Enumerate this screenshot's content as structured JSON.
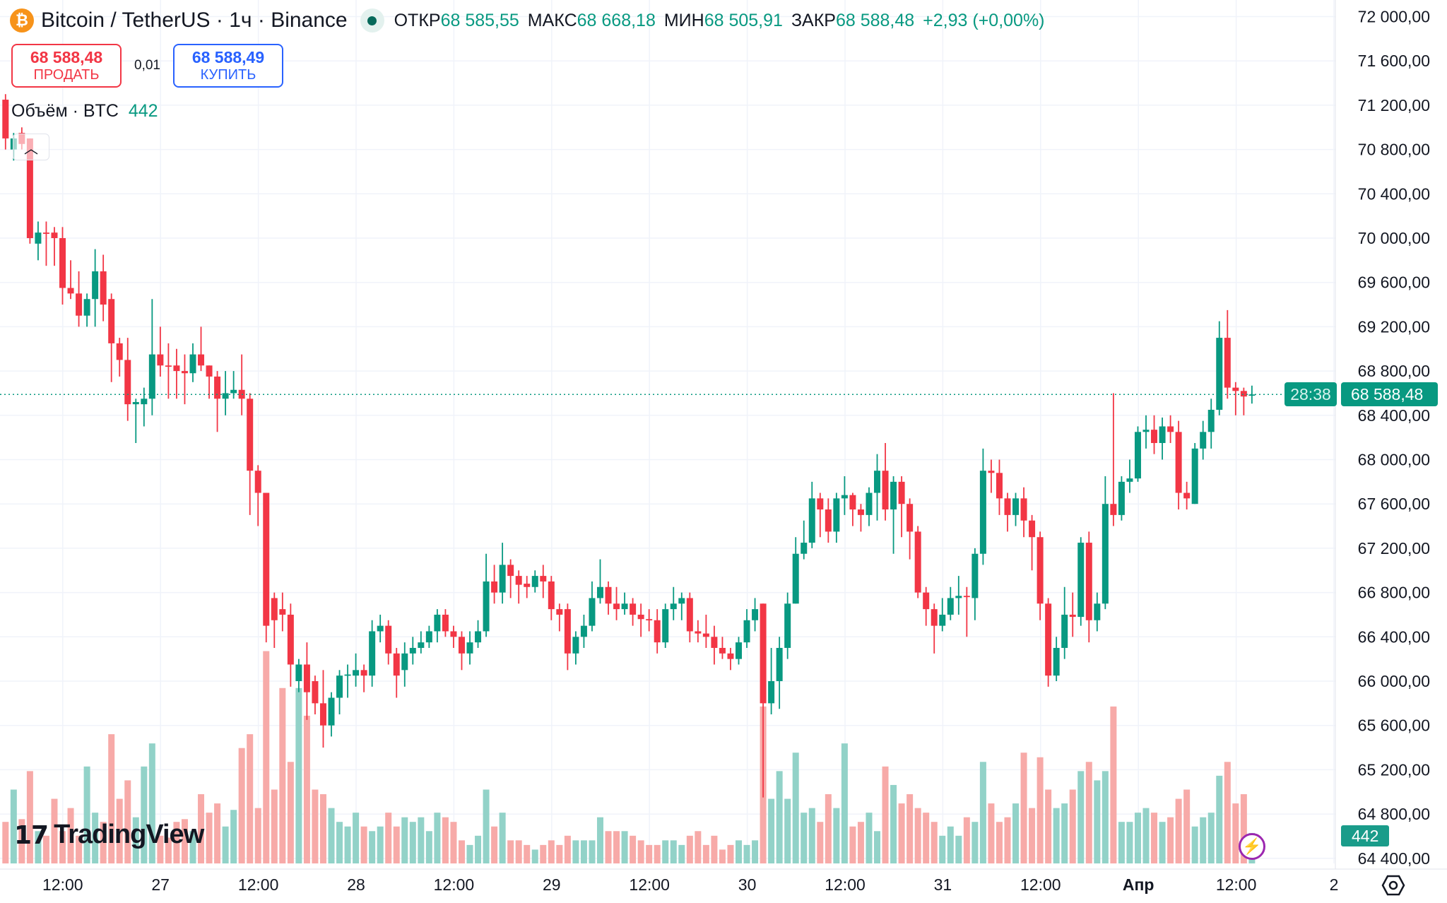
{
  "header": {
    "symbol_icon": "bitcoin-icon",
    "title": "Bitcoin / TetherUS · 1ч · Binance",
    "status_icon": "market-open-dot",
    "open_label": "ОТКР",
    "open_value": "68 585,55",
    "high_label": "МАКС",
    "high_value": "68 668,18",
    "low_label": "МИН",
    "low_value": "68 505,91",
    "close_label": "ЗАКР",
    "close_value": "68 588,48",
    "change": "+2,93 (+0,00%)"
  },
  "trade": {
    "sell_price": "68 588,48",
    "sell_label": "ПРОДАТЬ",
    "spread": "0,01",
    "buy_price": "68 588,49",
    "buy_label": "КУПИТЬ"
  },
  "volume_legend": {
    "label": "Объём · BTC",
    "value": "442"
  },
  "collapse_icon": "chevron-up-icon",
  "price_tag": {
    "price": "68 588,48",
    "countdown": "28:38"
  },
  "volume_tag": "442",
  "logo": "TradingView",
  "colors": {
    "up": "#089981",
    "down": "#f23645",
    "up_volume": "#92d2c8",
    "down_volume": "#f7aaa8",
    "sell": "#f23645",
    "buy": "#2962ff"
  },
  "chart_data": {
    "type": "candlestick",
    "interval": "1ч",
    "ylim": [
      64400,
      72000
    ],
    "y_ticks": [
      72000,
      71600,
      71200,
      70800,
      70400,
      70000,
      69600,
      69200,
      68800,
      68400,
      68000,
      67600,
      67200,
      66800,
      66400,
      66000,
      65600,
      65200,
      64800,
      64400
    ],
    "y_tick_labels": [
      "72 000,00",
      "71 600,00",
      "71 200,00",
      "70 800,00",
      "70 400,00",
      "70 000,00",
      "69 600,00",
      "69 200,00",
      "68 800,00",
      "68 400,00",
      "68 000,00",
      "67 600,00",
      "67 200,00",
      "66 800,00",
      "66 400,00",
      "66 000,00",
      "65 600,00",
      "65 200,00",
      "64 800,00",
      "64 400,00"
    ],
    "x_tick_labels": [
      "12:00",
      "27",
      "12:00",
      "28",
      "12:00",
      "29",
      "12:00",
      "30",
      "12:00",
      "31",
      "12:00",
      "Апр",
      "12:00",
      "2"
    ],
    "grid": true,
    "last_price": 68588.48,
    "ohlc": [
      [
        71250,
        71300,
        70800,
        70900
      ],
      [
        70800,
        70950,
        70700,
        70900
      ],
      [
        70950,
        71000,
        70800,
        70850
      ],
      [
        70900,
        70900,
        69950,
        70000
      ],
      [
        69950,
        70150,
        69800,
        70050
      ],
      [
        70050,
        70150,
        69750,
        70040
      ],
      [
        70050,
        70100,
        69750,
        70000
      ],
      [
        70000,
        70100,
        69400,
        69550
      ],
      [
        69550,
        69800,
        69450,
        69500
      ],
      [
        69500,
        69700,
        69200,
        69300
      ],
      [
        69300,
        69500,
        69200,
        69450
      ],
      [
        69450,
        69900,
        69200,
        69700
      ],
      [
        69700,
        69850,
        69250,
        69400
      ],
      [
        69450,
        69500,
        68700,
        69050
      ],
      [
        69050,
        69100,
        68750,
        68900
      ],
      [
        68900,
        69100,
        68350,
        68500
      ],
      [
        68500,
        68550,
        68150,
        68520
      ],
      [
        68500,
        68650,
        68300,
        68550
      ],
      [
        68550,
        69450,
        68400,
        68950
      ],
      [
        68950,
        69200,
        68750,
        68850
      ],
      [
        68850,
        69050,
        68550,
        68840
      ],
      [
        68850,
        69000,
        68550,
        68800
      ],
      [
        68800,
        68950,
        68500,
        68780
      ],
      [
        68780,
        69050,
        68700,
        68950
      ],
      [
        68950,
        69200,
        68800,
        68850
      ],
      [
        68850,
        68850,
        68550,
        68750
      ],
      [
        68750,
        68800,
        68250,
        68550
      ],
      [
        68550,
        68800,
        68400,
        68600
      ],
      [
        68600,
        68800,
        68550,
        68630
      ],
      [
        68630,
        68950,
        68400,
        68550
      ],
      [
        68550,
        68600,
        67500,
        67900
      ],
      [
        67900,
        67950,
        67400,
        67700
      ],
      [
        67700,
        67700,
        66350,
        66500
      ],
      [
        66750,
        66800,
        66300,
        66550
      ],
      [
        66650,
        66800,
        66450,
        66600
      ],
      [
        66600,
        66700,
        65950,
        66150
      ],
      [
        66000,
        66200,
        65900,
        66150
      ],
      [
        66150,
        66350,
        65650,
        65900
      ],
      [
        66000,
        66050,
        65700,
        65800
      ],
      [
        65800,
        66100,
        65400,
        65600
      ],
      [
        65600,
        65900,
        65500,
        65850
      ],
      [
        65850,
        66100,
        65700,
        66050
      ],
      [
        66050,
        66150,
        65850,
        66060
      ],
      [
        66050,
        66250,
        65950,
        66100
      ],
      [
        66100,
        66150,
        65900,
        66050
      ],
      [
        66050,
        66550,
        65950,
        66450
      ],
      [
        66450,
        66600,
        66350,
        66500
      ],
      [
        66500,
        66550,
        66150,
        66250
      ],
      [
        66250,
        66300,
        65850,
        66050
      ],
      [
        66100,
        66350,
        65950,
        66250
      ],
      [
        66250,
        66400,
        66150,
        66300
      ],
      [
        66300,
        66450,
        66250,
        66350
      ],
      [
        66350,
        66500,
        66300,
        66450
      ],
      [
        66450,
        66650,
        66350,
        66600
      ],
      [
        66600,
        66650,
        66400,
        66450
      ],
      [
        66450,
        66500,
        66300,
        66400
      ],
      [
        66400,
        66450,
        66100,
        66250
      ],
      [
        66250,
        66450,
        66150,
        66350
      ],
      [
        66350,
        66550,
        66300,
        66450
      ],
      [
        66450,
        67150,
        66400,
        66900
      ],
      [
        66900,
        67050,
        66700,
        66800
      ],
      [
        66800,
        67250,
        66700,
        67050
      ],
      [
        67050,
        67100,
        66750,
        66950
      ],
      [
        66950,
        67000,
        66700,
        66870
      ],
      [
        66880,
        66950,
        66750,
        66850
      ],
      [
        66850,
        67000,
        66800,
        66950
      ],
      [
        66950,
        67050,
        66750,
        66900
      ],
      [
        66900,
        66950,
        66550,
        66650
      ],
      [
        66650,
        66700,
        66450,
        66600
      ],
      [
        66650,
        66700,
        66100,
        66250
      ],
      [
        66250,
        66450,
        66150,
        66400
      ],
      [
        66400,
        66600,
        66300,
        66500
      ],
      [
        66500,
        66900,
        66450,
        66750
      ],
      [
        66750,
        67100,
        66700,
        66850
      ],
      [
        66850,
        66900,
        66600,
        66700
      ],
      [
        66700,
        66850,
        66550,
        66650
      ],
      [
        66650,
        66800,
        66600,
        66700
      ],
      [
        66700,
        66750,
        66500,
        66600
      ],
      [
        66600,
        66700,
        66400,
        66560
      ],
      [
        66560,
        66650,
        66450,
        66550
      ],
      [
        66550,
        66650,
        66250,
        66350
      ],
      [
        66350,
        66700,
        66300,
        66650
      ],
      [
        66650,
        66850,
        66550,
        66700
      ],
      [
        66700,
        66800,
        66550,
        66750
      ],
      [
        66750,
        66800,
        66350,
        66450
      ],
      [
        66450,
        66550,
        66350,
        66430
      ],
      [
        66430,
        66600,
        66300,
        66400
      ],
      [
        66400,
        66500,
        66150,
        66300
      ],
      [
        66300,
        66400,
        66200,
        66250
      ],
      [
        66250,
        66300,
        66100,
        66200
      ],
      [
        66200,
        66400,
        66150,
        66350
      ],
      [
        66350,
        66650,
        66300,
        66550
      ],
      [
        66550,
        66750,
        66450,
        66650
      ],
      [
        66700,
        66700,
        64950,
        65800
      ],
      [
        65800,
        66300,
        65700,
        66000
      ],
      [
        66000,
        66400,
        65750,
        66300
      ],
      [
        66300,
        66800,
        66200,
        66700
      ],
      [
        66700,
        67300,
        66700,
        67150
      ],
      [
        67150,
        67450,
        67100,
        67250
      ],
      [
        67250,
        67800,
        67200,
        67650
      ],
      [
        67650,
        67700,
        67300,
        67550
      ],
      [
        67550,
        67650,
        67250,
        67350
      ],
      [
        67350,
        67700,
        67250,
        67650
      ],
      [
        67650,
        67850,
        67500,
        67680
      ],
      [
        67680,
        67700,
        67400,
        67550
      ],
      [
        67550,
        67600,
        67350,
        67500
      ],
      [
        67500,
        67750,
        67400,
        67700
      ],
      [
        67700,
        68050,
        67450,
        67900
      ],
      [
        67900,
        68150,
        67450,
        67550
      ],
      [
        67550,
        67850,
        67150,
        67800
      ],
      [
        67800,
        67850,
        67300,
        67600
      ],
      [
        67600,
        67650,
        67100,
        67350
      ],
      [
        67350,
        67400,
        66750,
        66800
      ],
      [
        66800,
        66850,
        66500,
        66650
      ],
      [
        66650,
        66700,
        66250,
        66500
      ],
      [
        66500,
        66750,
        66450,
        66600
      ],
      [
        66600,
        66850,
        66550,
        66750
      ],
      [
        66750,
        66950,
        66600,
        66770
      ],
      [
        66770,
        66850,
        66400,
        66760
      ],
      [
        66750,
        67200,
        66550,
        67150
      ],
      [
        67150,
        68100,
        67050,
        67900
      ],
      [
        67900,
        68000,
        67700,
        67880
      ],
      [
        67880,
        68000,
        67500,
        67650
      ],
      [
        67650,
        67700,
        67350,
        67500
      ],
      [
        67500,
        67700,
        67400,
        67650
      ],
      [
        67650,
        67750,
        67300,
        67450
      ],
      [
        67450,
        67500,
        67000,
        67300
      ],
      [
        67300,
        67350,
        66550,
        66700
      ],
      [
        66700,
        66750,
        65950,
        66050
      ],
      [
        66050,
        66400,
        66000,
        66300
      ],
      [
        66300,
        66850,
        66200,
        66600
      ],
      [
        66600,
        66800,
        66400,
        66580
      ],
      [
        66580,
        67300,
        66500,
        67250
      ],
      [
        67250,
        67350,
        66350,
        66550
      ],
      [
        66550,
        66800,
        66450,
        66700
      ],
      [
        66700,
        67850,
        66650,
        67600
      ],
      [
        67600,
        68600,
        67400,
        67500
      ],
      [
        67500,
        67850,
        67450,
        67800
      ],
      [
        67800,
        68000,
        67700,
        67830
      ],
      [
        67830,
        68300,
        67800,
        68250
      ],
      [
        68250,
        68400,
        68100,
        68270
      ],
      [
        68270,
        68400,
        68050,
        68150
      ],
      [
        68150,
        68380,
        68000,
        68300
      ],
      [
        68300,
        68400,
        68150,
        68250
      ],
      [
        68250,
        68350,
        67550,
        67700
      ],
      [
        67700,
        67800,
        67550,
        67650
      ],
      [
        67600,
        68150,
        67600,
        68100
      ],
      [
        68100,
        68350,
        68000,
        68250
      ],
      [
        68250,
        68550,
        68100,
        68450
      ],
      [
        68450,
        69250,
        68400,
        69100
      ],
      [
        69100,
        69350,
        68550,
        68650
      ],
      [
        68650,
        68700,
        68400,
        68620
      ],
      [
        68620,
        68650,
        68400,
        68570
      ],
      [
        68585.55,
        68668.18,
        68505.91,
        68588.48
      ]
    ],
    "volume": [
      603,
      1072,
      643,
      1340,
      469,
      402,
      938,
      469,
      804,
      402,
      1407,
      737,
      603,
      1876,
      938,
      1206,
      670,
      1407,
      1742,
      402,
      375,
      603,
      643,
      469,
      1005,
      737,
      871,
      536,
      777,
      1675,
      1876,
      804,
      3082,
      1072,
      2546,
      1474,
      2546,
      2144,
      1072,
      1005,
      804,
      603,
      536,
      737,
      536,
      469,
      536,
      737,
      536,
      670,
      603,
      670,
      469,
      737,
      670,
      603,
      335,
      268,
      402,
      1072,
      536,
      737,
      335,
      335,
      268,
      201,
      268,
      335,
      268,
      402,
      335,
      335,
      335,
      670,
      469,
      469,
      469,
      402,
      335,
      268,
      268,
      335,
      335,
      268,
      402,
      469,
      268,
      402,
      201,
      268,
      335,
      268,
      335,
      2278,
      938,
      1340,
      938,
      1608,
      737,
      804,
      603,
      1005,
      804,
      1742,
      536,
      603,
      737,
      469,
      1407,
      1139,
      871,
      1005,
      804,
      737,
      603,
      402,
      536,
      402,
      670,
      603,
      1474,
      871,
      603,
      670,
      871,
      1608,
      804,
      1541,
      1072,
      804,
      871,
      1072,
      1340,
      1474,
      1206,
      1340,
      2278,
      603,
      603,
      737,
      804,
      737,
      603,
      670,
      938,
      1072,
      536,
      670,
      737,
      1273,
      1474,
      871,
      1005,
      442
    ]
  }
}
